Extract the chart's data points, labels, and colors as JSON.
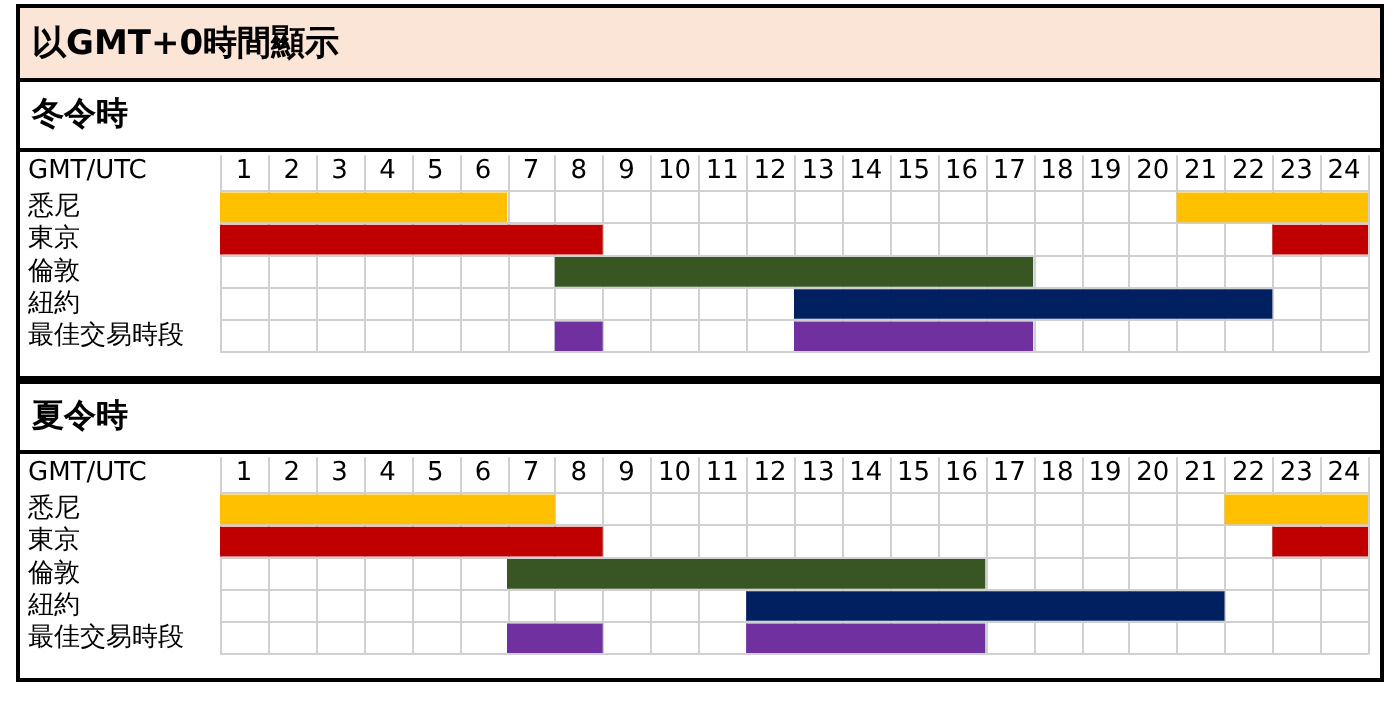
{
  "chart_data": [
    {
      "type": "bar",
      "orientation": "horizontal",
      "title": "以GMT+0時間顯示",
      "subtitle": "冬令時",
      "xlabel": "GMT/UTC",
      "categories": [
        "悉尼",
        "東京",
        "倫敦",
        "紐約",
        "最佳交易時段"
      ],
      "series": [
        {
          "colors": [
            "#ffc000",
            "#c00000",
            "#375623",
            "#002060",
            "#7030a0"
          ],
          "base": [
            0.5,
            0.5,
            7.5,
            12.5,
            7.5
          ],
          "values": [
            6,
            8,
            10,
            10,
            1
          ]
        },
        {
          "colors": [
            "#ffc000",
            "#c00000",
            null,
            null,
            "#7030a0"
          ],
          "base": [
            20.5,
            22.5,
            null,
            null,
            12.5
          ],
          "values": [
            4,
            2,
            null,
            null,
            5
          ]
        }
      ],
      "xlim": [
        0.5,
        24.5
      ],
      "xticks": [
        1,
        2,
        3,
        4,
        5,
        6,
        7,
        8,
        9,
        10,
        11,
        12,
        13,
        14,
        15,
        16,
        17,
        18,
        19,
        20,
        21,
        22,
        23,
        24
      ],
      "grid": true
    },
    {
      "type": "bar",
      "orientation": "horizontal",
      "title": "夏令時",
      "xlabel": "GMT/UTC",
      "categories": [
        "悉尼",
        "東京",
        "倫敦",
        "紐約",
        "最佳交易時段"
      ],
      "series": [
        {
          "colors": [
            "#ffc000",
            "#c00000",
            "#375623",
            "#002060",
            "#7030a0"
          ],
          "base": [
            0.5,
            0.5,
            6.5,
            11.5,
            6.5
          ],
          "values": [
            7,
            8,
            10,
            10,
            2
          ]
        },
        {
          "colors": [
            "#ffc000",
            "#c00000",
            null,
            null,
            "#7030a0"
          ],
          "base": [
            21.5,
            22.5,
            null,
            null,
            11.5
          ],
          "values": [
            3,
            2,
            null,
            null,
            5
          ]
        }
      ],
      "xlim": [
        0.5,
        24.5
      ],
      "xticks": [
        1,
        2,
        3,
        4,
        5,
        6,
        7,
        8,
        9,
        10,
        11,
        12,
        13,
        14,
        15,
        16,
        17,
        18,
        19,
        20,
        21,
        22,
        23,
        24
      ],
      "grid": true
    }
  ]
}
